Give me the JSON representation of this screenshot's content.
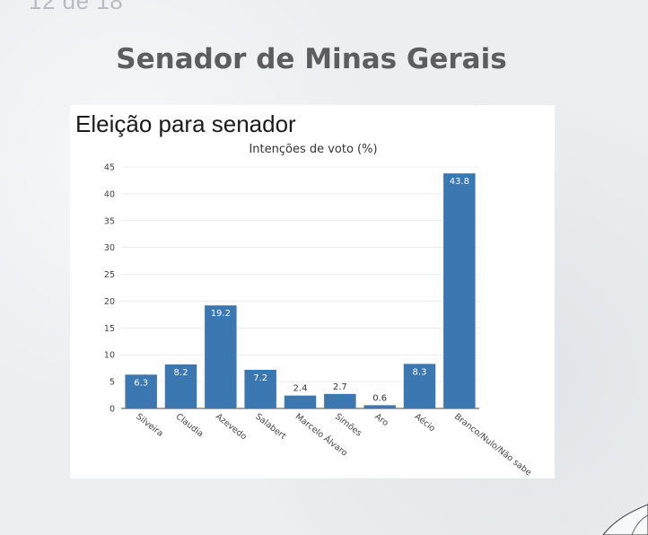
{
  "page_number": "12 de 18",
  "slide_title": "Senador de Minas Gerais",
  "chart_heading": "Eleição para senador",
  "chart_data": {
    "type": "bar",
    "title": "Intenções de voto (%)",
    "xlabel": "",
    "ylabel": "",
    "ylim": [
      0,
      45
    ],
    "yticks": [
      0,
      5,
      10,
      15,
      20,
      25,
      30,
      35,
      40,
      45
    ],
    "grid": true,
    "categories": [
      "Silveira",
      "Claudia",
      "Azevedo",
      "Salabert",
      "Marcelo Álvaro",
      "Simões",
      "Aro",
      "Aécio",
      "Branco/Nulo/Não sabe"
    ],
    "values": [
      6.3,
      8.2,
      19.2,
      7.2,
      2.4,
      2.7,
      0.6,
      8.3,
      43.8
    ],
    "value_labels": [
      "6.3",
      "8.2",
      "19.2",
      "7.2",
      "2.4",
      "2.7",
      "0.6",
      "8.3",
      "43.8"
    ],
    "bar_color": "#3b77b0"
  }
}
